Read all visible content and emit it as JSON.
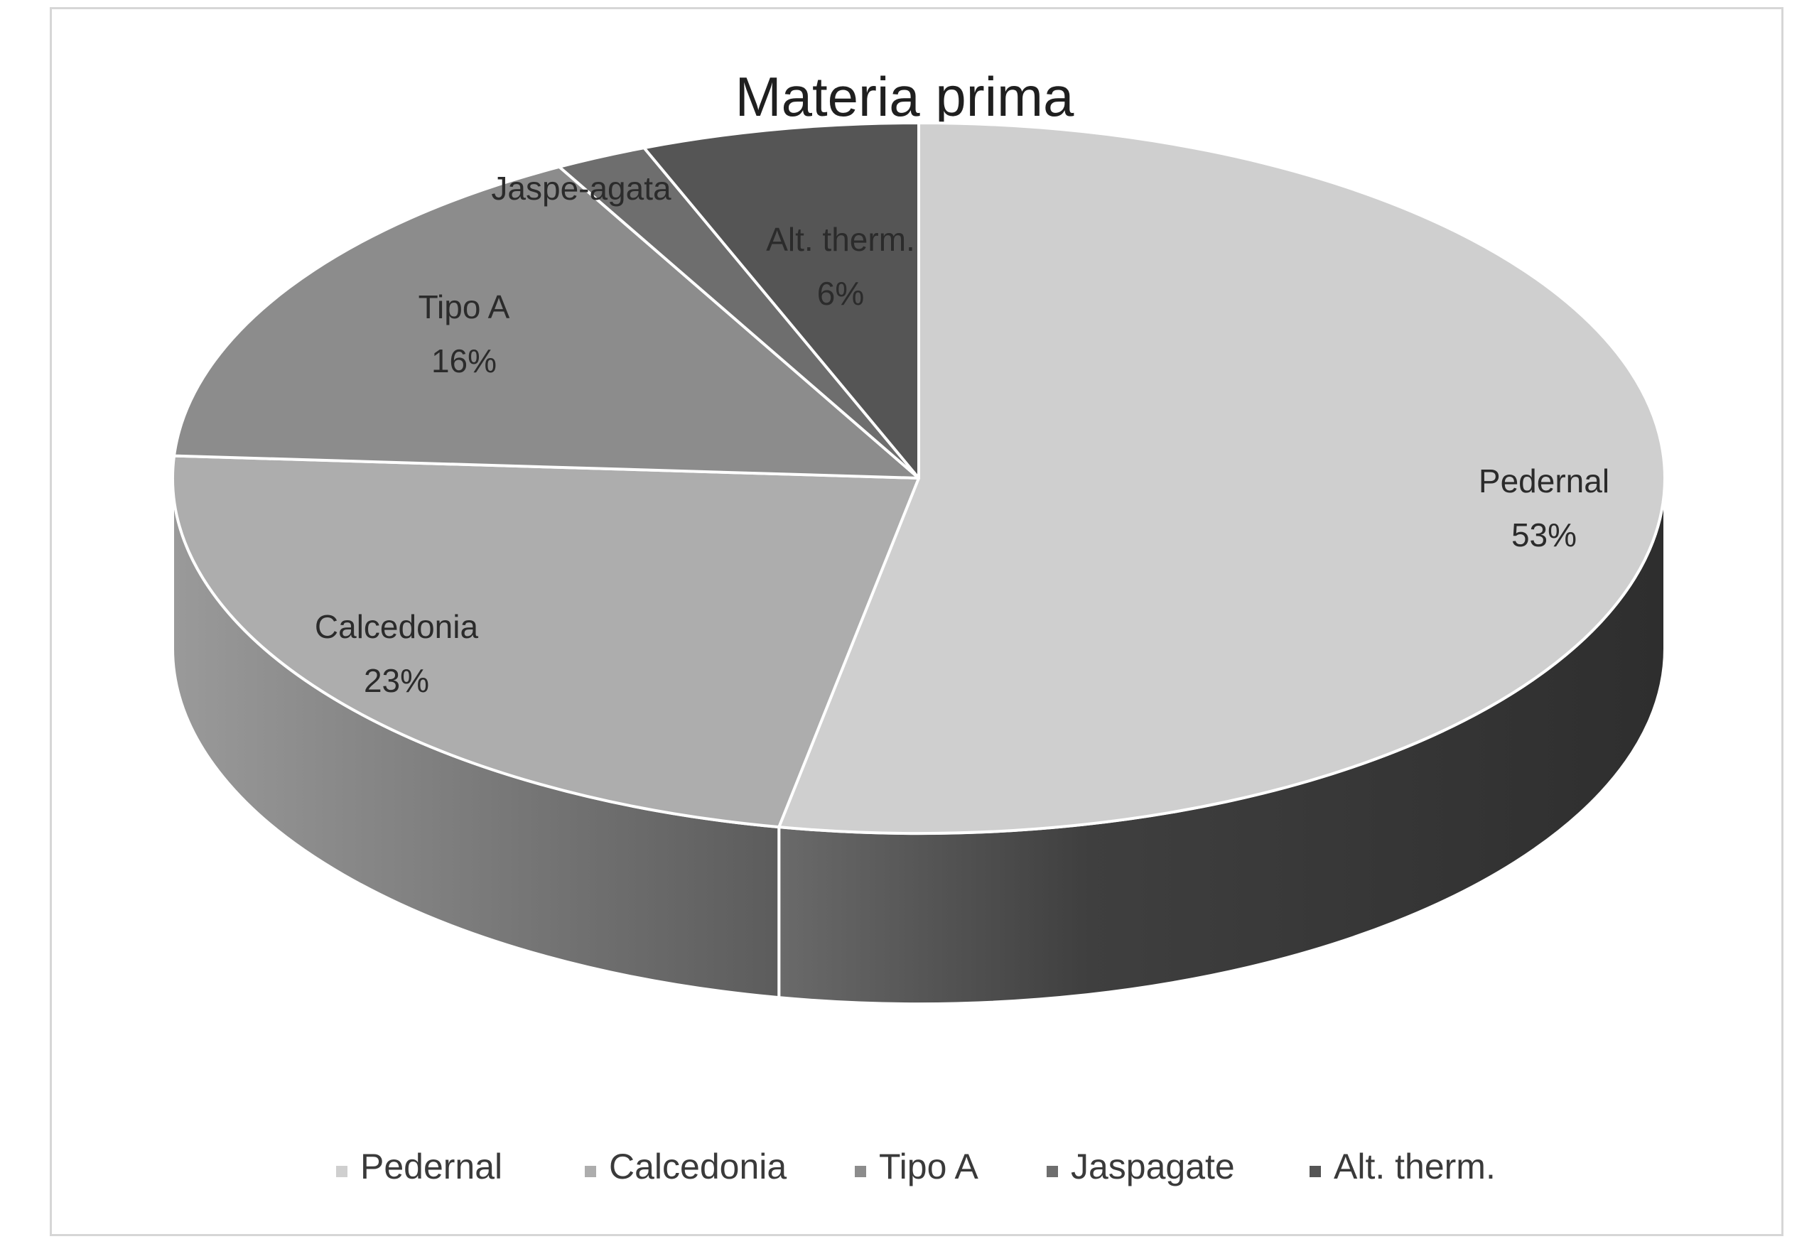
{
  "chart_data": {
    "type": "pie",
    "title": "Materia prima",
    "three_d": true,
    "slices": [
      {
        "label": "Pedernal",
        "data_label": "Pedernal",
        "value": 53,
        "value_text": "53%",
        "top_color": "#cfcfcf",
        "side_color": "#3a3a3a"
      },
      {
        "label": "Calcedonia",
        "data_label": "Calcedonia",
        "value": 23,
        "value_text": "23%",
        "top_color": "#adadad",
        "side_color": "#6e6e6e"
      },
      {
        "label": "Tipo A",
        "data_label": "Tipo A",
        "value": 16,
        "value_text": "16%",
        "top_color": "#8c8c8c",
        "side_color": "#5a5a5a"
      },
      {
        "label": "Jaspagate",
        "data_label": "Jaspe-agata",
        "value": 2,
        "value_text": "",
        "top_color": "#6e6e6e",
        "side_color": "#454545"
      },
      {
        "label": "Alt. therm.",
        "data_label": "Alt. therm.",
        "value": 6,
        "value_text": "6%",
        "top_color": "#555555",
        "side_color": "#333333"
      }
    ],
    "legend": {
      "position": "bottom",
      "entries": [
        "Pedernal",
        "Calcedonia",
        "Tipo A",
        "Jaspagate",
        "Alt. therm."
      ]
    }
  }
}
